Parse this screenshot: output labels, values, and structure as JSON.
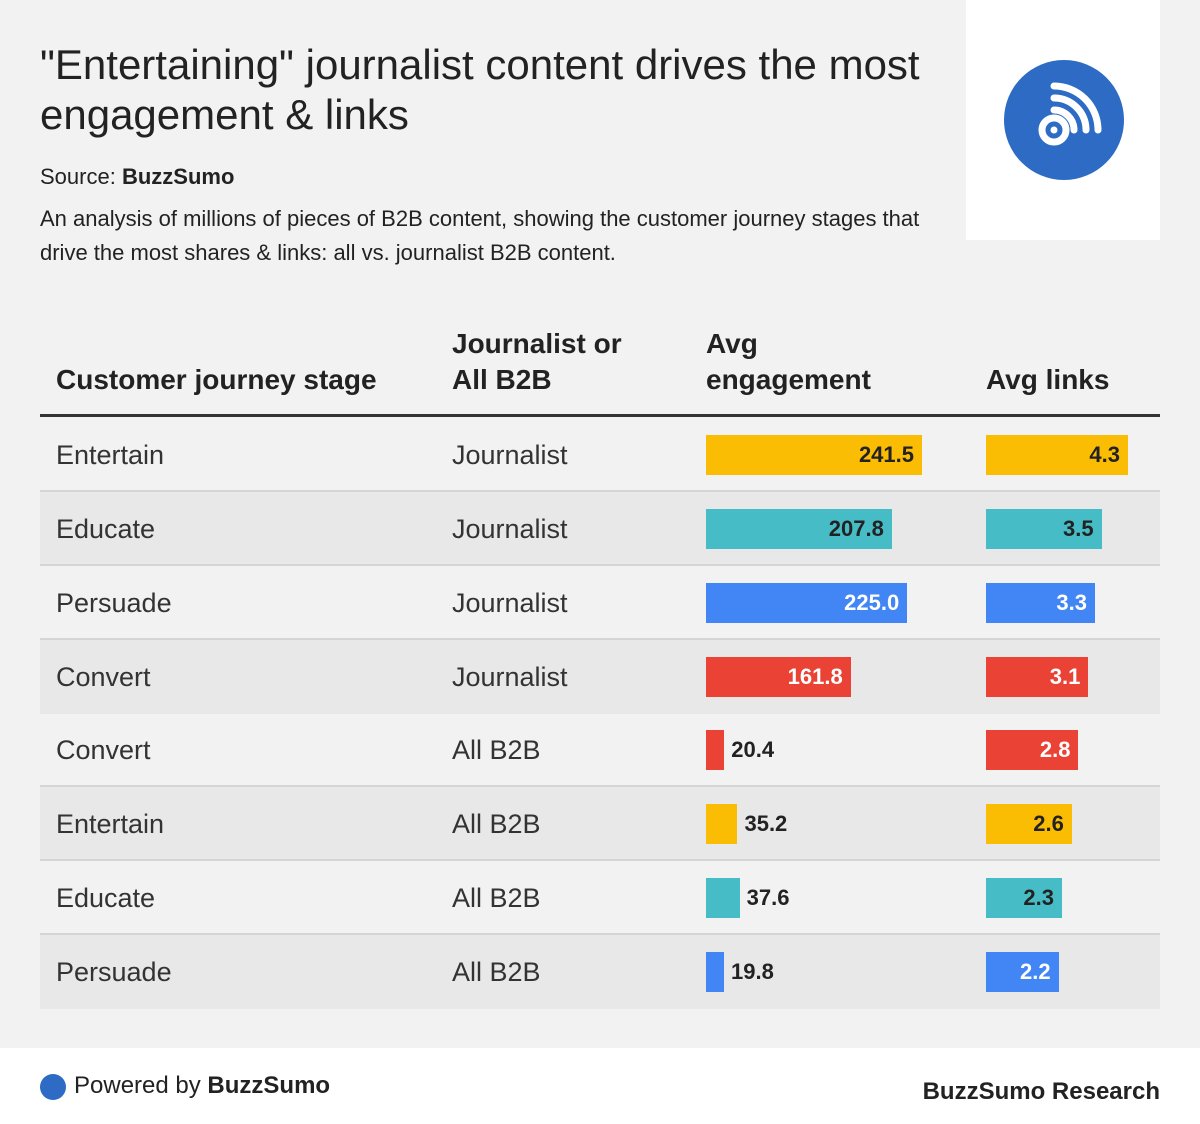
{
  "header": {
    "title": "\"Entertaining\" journalist content drives the most engagement & links",
    "source_label": "Source:",
    "source_name": "BuzzSumo",
    "description": "An analysis of millions of pieces of B2B content, showing the customer journey stages that drive the most shares & links: all vs. journalist B2B content."
  },
  "colors": {
    "entertain": "#fbbc04",
    "educate": "#46bdc6",
    "persuade": "#4285f4",
    "convert": "#ea4335",
    "brand": "#2d6bc4"
  },
  "chart_data": {
    "type": "table",
    "columns": [
      "Customer journey stage",
      "Journalist or All B2B",
      "Avg engagement",
      "Avg links"
    ],
    "rows": [
      {
        "stage": "Entertain",
        "group": "Journalist",
        "engagement": 241.5,
        "engagement_label": "241.5",
        "links": 4.3,
        "links_label": "4.3",
        "color": "#fbbc04"
      },
      {
        "stage": "Educate",
        "group": "Journalist",
        "engagement": 207.8,
        "engagement_label": "207.8",
        "links": 3.5,
        "links_label": "3.5",
        "color": "#46bdc6"
      },
      {
        "stage": "Persuade",
        "group": "Journalist",
        "engagement": 225.0,
        "engagement_label": "225.0",
        "links": 3.3,
        "links_label": "3.3",
        "color": "#4285f4"
      },
      {
        "stage": "Convert",
        "group": "Journalist",
        "engagement": 161.8,
        "engagement_label": "161.8",
        "links": 3.1,
        "links_label": "3.1",
        "color": "#ea4335"
      },
      {
        "stage": "Convert",
        "group": "All B2B",
        "engagement": 20.4,
        "engagement_label": "20.4",
        "links": 2.8,
        "links_label": "2.8",
        "color": "#ea4335"
      },
      {
        "stage": "Entertain",
        "group": "All B2B",
        "engagement": 35.2,
        "engagement_label": "35.2",
        "links": 2.6,
        "links_label": "2.6",
        "color": "#fbbc04"
      },
      {
        "stage": "Educate",
        "group": "All B2B",
        "engagement": 37.6,
        "engagement_label": "37.6",
        "links": 2.3,
        "links_label": "2.3",
        "color": "#46bdc6"
      },
      {
        "stage": "Persuade",
        "group": "All B2B",
        "engagement": 19.8,
        "engagement_label": "19.8",
        "links": 2.2,
        "links_label": "2.2",
        "color": "#4285f4"
      }
    ],
    "engagement_max": 241.5,
    "links_max": 4.3
  },
  "footer": {
    "powered_label": "Powered by",
    "powered_brand": "BuzzSumo",
    "research": "BuzzSumo Research"
  }
}
